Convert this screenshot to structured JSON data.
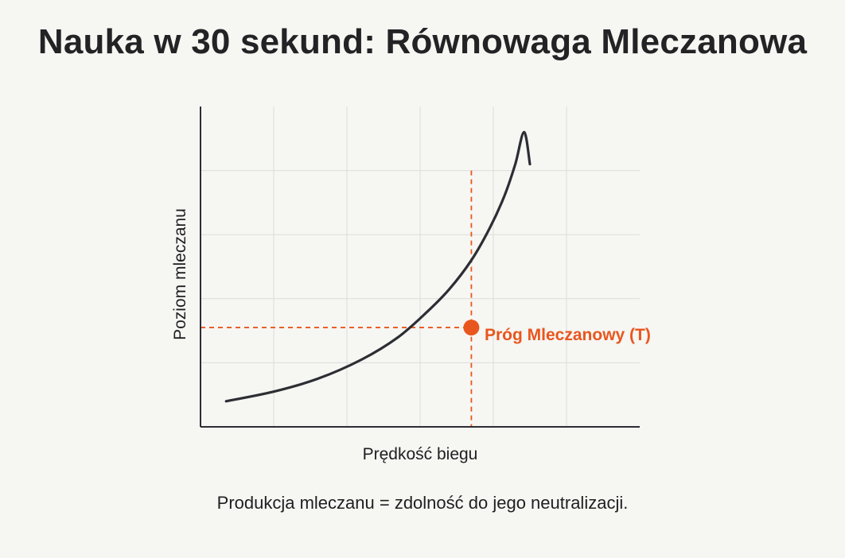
{
  "page": {
    "title": "Nauka w 30 sekund: Równowaga Mleczanowa",
    "caption": "Produkcja mleczanu = zdolność do jego neutralizacji."
  },
  "colors": {
    "background": "#f6f6f3",
    "curve": "#2c2e34",
    "threshold": "#e9561d",
    "grid": "#dcdcda",
    "axis": "#2c2e34"
  },
  "chart_data": {
    "type": "line",
    "title": "Nauka w 30 sekund: Równowaga Mleczanowa",
    "xlabel": "Prędkość biegu",
    "ylabel": "Poziom mleczanu",
    "xlim": [
      0,
      6
    ],
    "ylim": [
      0,
      5
    ],
    "grid": true,
    "ticks_labeled": false,
    "series": [
      {
        "x": [
          0.35,
          1.0,
          1.6,
          2.2,
          2.7,
          3.1,
          3.4,
          3.7,
          3.95,
          4.15,
          4.3,
          4.42,
          4.5
        ],
        "y": [
          0.4,
          0.55,
          0.75,
          1.05,
          1.4,
          1.8,
          2.15,
          2.6,
          3.1,
          3.6,
          4.1,
          4.6,
          4.1
        ]
      }
    ],
    "annotations": [
      {
        "type": "threshold-point",
        "label": "Próg Mleczanowy (T)",
        "x": 3.7,
        "y": 1.55
      }
    ]
  }
}
